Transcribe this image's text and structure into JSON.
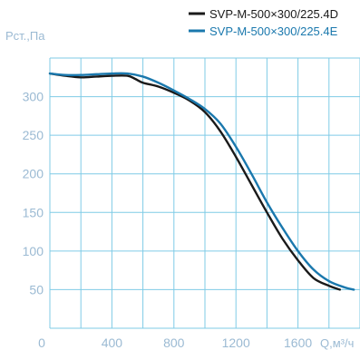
{
  "chart_data": {
    "type": "line",
    "ylabel": "Pст.,Па",
    "xlabel": "Q,м³/ч",
    "x_ticks": [
      0,
      400,
      800,
      1200,
      1600
    ],
    "y_ticks": [
      50,
      100,
      150,
      200,
      250,
      300
    ],
    "xlim": [
      0,
      2000
    ],
    "ylim": [
      0,
      350
    ],
    "grid": true,
    "legend_position": "top-right",
    "series": [
      {
        "name": "SVP-M-500×300/225.4D",
        "color": "#1a1a1a",
        "x": [
          0,
          100,
          200,
          300,
          400,
          500,
          550,
          600,
          700,
          800,
          900,
          1000,
          1100,
          1200,
          1300,
          1400,
          1500,
          1600,
          1700,
          1800,
          1870
        ],
        "y": [
          330,
          327,
          325,
          326,
          327,
          327,
          323,
          318,
          313,
          305,
          295,
          280,
          255,
          222,
          186,
          150,
          116,
          88,
          65,
          55,
          50
        ]
      },
      {
        "name": "SVP-M-500×300/225.4E",
        "color": "#1a78ad",
        "x": [
          0,
          100,
          200,
          300,
          400,
          500,
          600,
          700,
          800,
          900,
          1000,
          1100,
          1200,
          1300,
          1400,
          1500,
          1600,
          1700,
          1800,
          1900,
          1960
        ],
        "y": [
          330,
          328,
          328,
          329,
          330,
          330,
          326,
          318,
          308,
          297,
          284,
          265,
          235,
          200,
          163,
          130,
          100,
          76,
          61,
          53,
          50
        ]
      }
    ]
  }
}
